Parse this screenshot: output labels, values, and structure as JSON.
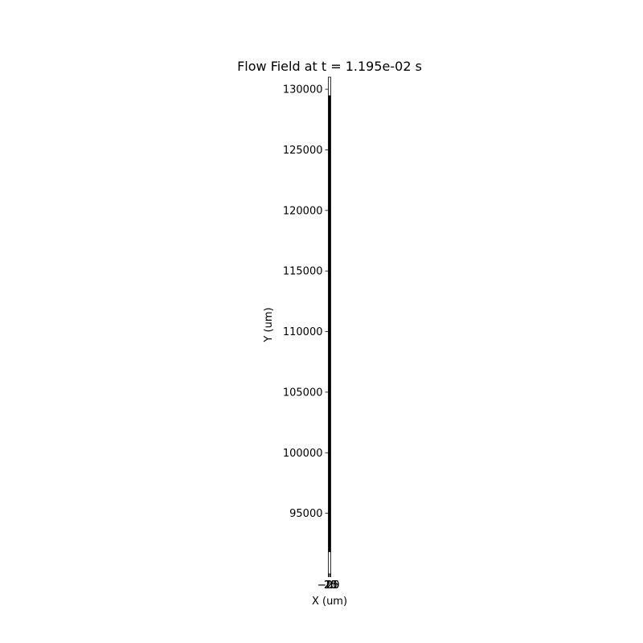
{
  "chart_data": {
    "type": "line",
    "title": "Flow Field at t = 1.195e-02 s",
    "xlabel": "X (um)",
    "ylabel": "Y (um)",
    "xlim": [
      -25,
      25
    ],
    "ylim": [
      90000,
      131000
    ],
    "x_ticks": [
      -25,
      -20,
      0,
      20,
      25
    ],
    "x_tick_labels": [
      "−25",
      "−20",
      "0",
      "20",
      "25"
    ],
    "y_ticks": [
      95000,
      100000,
      105000,
      110000,
      115000,
      120000,
      125000,
      130000
    ],
    "y_tick_labels": [
      "95000",
      "100000",
      "105000",
      "110000",
      "115000",
      "120000",
      "125000",
      "130000"
    ],
    "grid": false,
    "colors": {
      "field_trace": "#000000",
      "axes": "#000000"
    },
    "series": [
      {
        "x": [
          0,
          0
        ],
        "y": [
          91800,
          129500
        ]
      }
    ]
  }
}
